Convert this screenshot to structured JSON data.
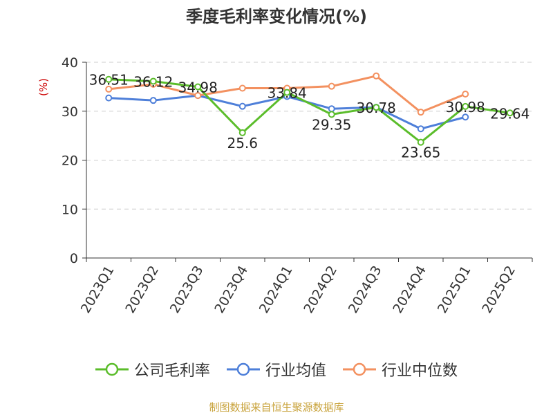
{
  "title": "季度毛利率变化情况(%)",
  "source": "制图数据来自恒生聚源数据库",
  "chart_data": {
    "type": "line",
    "ylabel": "(%)",
    "ylim": [
      0,
      40
    ],
    "yticks": [
      0,
      10,
      20,
      30,
      40
    ],
    "grid": true,
    "legend_position": "bottom",
    "categories": [
      "2023Q1",
      "2023Q2",
      "2023Q3",
      "2023Q4",
      "2024Q1",
      "2024Q2",
      "2024Q3",
      "2024Q4",
      "2025Q1",
      "2025Q2"
    ],
    "series": [
      {
        "name": "公司毛利率",
        "color": "#5bbd2b",
        "values": [
          36.51,
          36.12,
          34.98,
          25.6,
          33.84,
          29.35,
          30.78,
          23.65,
          30.98,
          29.64
        ],
        "labels": [
          "36.51",
          "36.12",
          "34.98",
          "25.6",
          "33.84",
          "29.35",
          "30.78",
          "23.65",
          "30.98",
          "29.64"
        ]
      },
      {
        "name": "行业均值",
        "color": "#4e7fd9",
        "values": [
          32.7,
          32.2,
          33.2,
          31.0,
          33.0,
          30.5,
          30.8,
          26.4,
          28.8,
          null
        ]
      },
      {
        "name": "行业中位数",
        "color": "#f39160",
        "values": [
          34.5,
          35.5,
          33.2,
          34.7,
          34.7,
          35.1,
          37.2,
          29.8,
          33.5,
          null
        ]
      }
    ]
  }
}
